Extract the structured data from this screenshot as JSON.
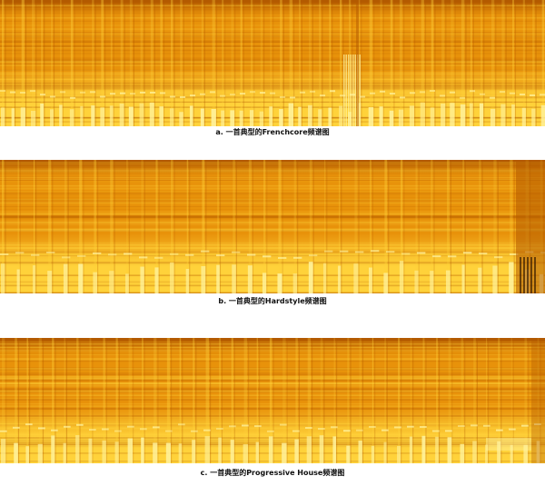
{
  "figure": {
    "panels": [
      {
        "caption": "a. 一首典型的Frenchcore频谱图",
        "palette": {
          "dark": "#b35a00",
          "mid": "#e8920a",
          "light": "#ffd23a",
          "bright": "#fff3a0"
        }
      },
      {
        "caption": "b. 一首典型的Hardstyle频谱图",
        "palette": {
          "dark": "#b35a00",
          "mid": "#e8920a",
          "light": "#ffd23a",
          "bright": "#fff3a0"
        }
      },
      {
        "caption": "c. 一首典型的Progressive House频谱图",
        "palette": {
          "dark": "#b35a00",
          "mid": "#e8920a",
          "light": "#ffd23a",
          "bright": "#fff3a0"
        }
      }
    ]
  }
}
